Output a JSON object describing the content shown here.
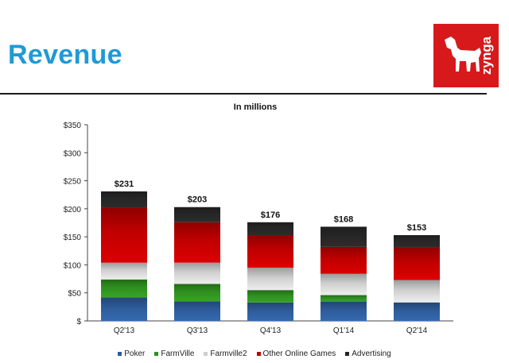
{
  "title": "Revenue",
  "logo": {
    "text": "zynga",
    "color": "#d7191c"
  },
  "chart_data": {
    "type": "bar",
    "stacked": true,
    "title": "In millions",
    "categories": [
      "Q2'13",
      "Q3'13",
      "Q4'13",
      "Q1'14",
      "Q2'14"
    ],
    "series": [
      {
        "name": "Poker",
        "color": "#2e5c9a",
        "values": [
          42,
          35,
          33,
          34,
          33
        ]
      },
      {
        "name": "FarmVille",
        "color": "#2f8f1f",
        "values": [
          32,
          31,
          22,
          12,
          0
        ]
      },
      {
        "name": "Farmville2",
        "color": "#cfcfcf",
        "values": [
          30,
          38,
          40,
          38,
          40
        ]
      },
      {
        "name": "Other Online Games",
        "color": "#c00000",
        "values": [
          98,
          72,
          58,
          48,
          58
        ]
      },
      {
        "name": "Advertising",
        "color": "#262626",
        "values": [
          29,
          27,
          23,
          36,
          22
        ]
      }
    ],
    "totals": [
      "$231",
      "$203",
      "$176",
      "$168",
      "$153"
    ],
    "ylim": [
      0,
      350
    ],
    "ytick_values": [
      0,
      50,
      100,
      150,
      200,
      250,
      300,
      350
    ],
    "ytick_labels": [
      "$",
      "$50",
      "$100",
      "$150",
      "$200",
      "$250",
      "$300",
      "$350"
    ],
    "xlabel": "",
    "ylabel": "",
    "grid": false,
    "legend": "bottom"
  }
}
